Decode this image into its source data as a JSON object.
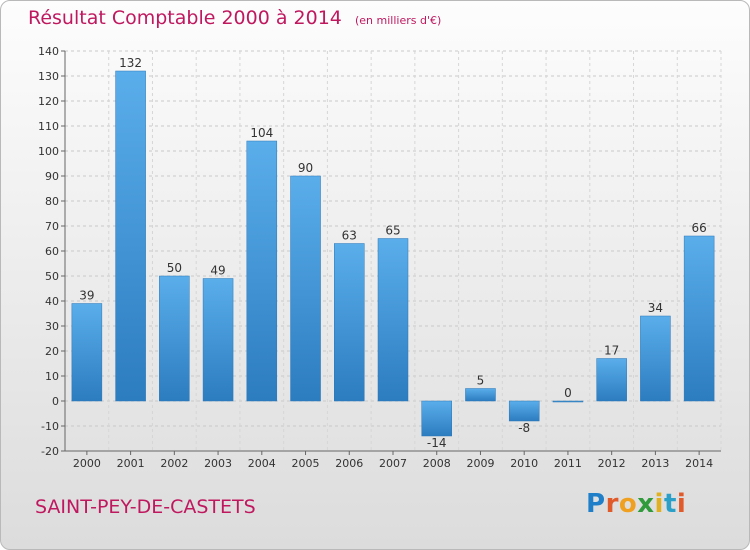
{
  "chart_data": {
    "type": "bar",
    "title": "Résultat Comptable 2000 à 2014",
    "subtitle": "(en milliers d'€)",
    "categories": [
      "2000",
      "2001",
      "2002",
      "2003",
      "2004",
      "2005",
      "2006",
      "2007",
      "2008",
      "2009",
      "2010",
      "2011",
      "2012",
      "2013",
      "2014"
    ],
    "values": [
      39,
      132,
      50,
      49,
      104,
      90,
      63,
      65,
      -14,
      5,
      -8,
      0,
      17,
      34,
      66
    ],
    "ylim": [
      -20,
      140
    ],
    "yticks": [
      -20,
      -10,
      0,
      10,
      20,
      30,
      40,
      50,
      60,
      70,
      80,
      90,
      100,
      110,
      120,
      130,
      140
    ],
    "grid": true,
    "bar_color": "#3d8fd6"
  },
  "footer": {
    "commune": "SAINT-PEY-DE-CASTETS",
    "logo_letters": [
      {
        "ch": "P",
        "color": "#1f7fc9"
      },
      {
        "ch": "r",
        "color": "#e05a2a"
      },
      {
        "ch": "o",
        "color": "#f0a020"
      },
      {
        "ch": "x",
        "color": "#2f9b3a"
      },
      {
        "ch": "i",
        "color": "#e0b020"
      },
      {
        "ch": "t",
        "color": "#2aa0c8"
      },
      {
        "ch": "i",
        "color": "#e05a2a"
      }
    ]
  }
}
